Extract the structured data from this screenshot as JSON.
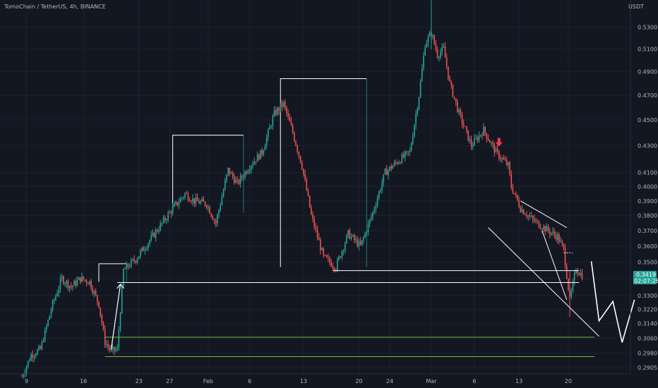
{
  "header": {
    "title": "TomoChain / TetherUS, 4h, BINANCE",
    "currency": "USDT"
  },
  "price_tag": {
    "price": "0.3419",
    "countdown": "02:07:26",
    "color": "#26a69a"
  },
  "colors": {
    "up": "#26a69a",
    "down": "#ef5350",
    "background": "#131722",
    "grid": "#1e222d",
    "drawing": "#ffffff",
    "support": "#66bb3a",
    "arrow_marker": "#ef3b50"
  },
  "chart_data": {
    "type": "candlestick",
    "title": "TomoChain / TetherUS, 4h, BINANCE",
    "ylabel": "USDT",
    "y_scale": "log",
    "ylim": [
      0.2862,
      0.5562
    ],
    "y_ticks": [
      "0.5300",
      "0.5100",
      "0.4900",
      "0.4700",
      "0.4500",
      "0.4300",
      "0.4100",
      "0.4000",
      "0.3900",
      "0.3800",
      "0.3700",
      "0.3600",
      "0.3500",
      "0.3400",
      "0.3300",
      "0.3220",
      "0.3140",
      "0.3060",
      "0.2980",
      "0.2905"
    ],
    "x_ticks": [
      "9",
      "16",
      "23",
      "27",
      "Feb",
      "6",
      "13",
      "20",
      "24",
      "Mar",
      "6",
      "13",
      "20"
    ],
    "grid": true,
    "price_path": [
      {
        "i": 0,
        "p": 0.286
      },
      {
        "i": 6,
        "p": 0.297
      },
      {
        "i": 12,
        "p": 0.3
      },
      {
        "i": 20,
        "p": 0.325
      },
      {
        "i": 26,
        "p": 0.34
      },
      {
        "i": 32,
        "p": 0.335
      },
      {
        "i": 38,
        "p": 0.34
      },
      {
        "i": 44,
        "p": 0.338
      },
      {
        "i": 50,
        "p": 0.325
      },
      {
        "i": 54,
        "p": 0.304
      },
      {
        "i": 58,
        "p": 0.299
      },
      {
        "i": 62,
        "p": 0.3
      },
      {
        "i": 66,
        "p": 0.345
      },
      {
        "i": 74,
        "p": 0.352
      },
      {
        "i": 84,
        "p": 0.365
      },
      {
        "i": 96,
        "p": 0.382
      },
      {
        "i": 106,
        "p": 0.395
      },
      {
        "i": 112,
        "p": 0.39
      },
      {
        "i": 120,
        "p": 0.388
      },
      {
        "i": 126,
        "p": 0.375
      },
      {
        "i": 134,
        "p": 0.412
      },
      {
        "i": 140,
        "p": 0.402
      },
      {
        "i": 148,
        "p": 0.415
      },
      {
        "i": 156,
        "p": 0.425
      },
      {
        "i": 164,
        "p": 0.455
      },
      {
        "i": 170,
        "p": 0.463
      },
      {
        "i": 176,
        "p": 0.44
      },
      {
        "i": 182,
        "p": 0.415
      },
      {
        "i": 188,
        "p": 0.38
      },
      {
        "i": 196,
        "p": 0.353
      },
      {
        "i": 204,
        "p": 0.347
      },
      {
        "i": 212,
        "p": 0.368
      },
      {
        "i": 220,
        "p": 0.36
      },
      {
        "i": 228,
        "p": 0.382
      },
      {
        "i": 236,
        "p": 0.41
      },
      {
        "i": 244,
        "p": 0.418
      },
      {
        "i": 252,
        "p": 0.425
      },
      {
        "i": 258,
        "p": 0.47
      },
      {
        "i": 262,
        "p": 0.515
      },
      {
        "i": 266,
        "p": 0.525
      },
      {
        "i": 270,
        "p": 0.505
      },
      {
        "i": 274,
        "p": 0.51
      },
      {
        "i": 278,
        "p": 0.48
      },
      {
        "i": 284,
        "p": 0.455
      },
      {
        "i": 292,
        "p": 0.43
      },
      {
        "i": 300,
        "p": 0.442
      },
      {
        "i": 308,
        "p": 0.425
      },
      {
        "i": 316,
        "p": 0.415
      },
      {
        "i": 318,
        "p": 0.4
      },
      {
        "i": 324,
        "p": 0.385
      },
      {
        "i": 332,
        "p": 0.377
      },
      {
        "i": 342,
        "p": 0.37
      },
      {
        "i": 348,
        "p": 0.366
      },
      {
        "i": 352,
        "p": 0.358
      },
      {
        "i": 356,
        "p": 0.327
      },
      {
        "i": 360,
        "p": 0.346
      },
      {
        "i": 364,
        "p": 0.3419
      }
    ],
    "annotations": {
      "boxes": [
        {
          "x": [
            50,
            68
          ],
          "y": [
            0.338,
            0.349
          ]
        },
        {
          "x": [
            98,
            144
          ],
          "y": [
            0.382,
            0.438
          ]
        },
        {
          "x": [
            168,
            224
          ],
          "y": [
            0.347,
            0.484
          ]
        }
      ],
      "levels": [
        {
          "x": [
            62,
            362
          ],
          "y": 0.3376
        },
        {
          "x": [
            202,
            362
          ],
          "y": 0.3448
        },
        {
          "x": [
            54,
            372
          ],
          "y": 0.3065,
          "style": "support"
        },
        {
          "x": [
            54,
            372
          ],
          "y": 0.2962,
          "style": "support"
        }
      ],
      "channel": [
        {
          "x": [
            324,
            354
          ],
          "y": [
            0.39,
            0.372
          ]
        },
        {
          "x": [
            303,
            375
          ],
          "y": [
            0.372,
            0.307
          ]
        },
        {
          "x": [
            338,
            354
          ],
          "y": [
            0.37,
            0.3275
          ]
        }
      ],
      "projection": [
        {
          "i": 370,
          "p": 0.3505
        },
        {
          "i": 375,
          "p": 0.3155
        },
        {
          "i": 384,
          "p": 0.3265
        },
        {
          "i": 390,
          "p": 0.3037
        },
        {
          "i": 398,
          "p": 0.3275
        }
      ],
      "breakout_arrow": [
        {
          "i": 58,
          "p": 0.2998
        },
        {
          "i": 64,
          "p": 0.3366
        }
      ],
      "sell_arrow": {
        "i": 310,
        "p": 0.4315
      }
    }
  }
}
